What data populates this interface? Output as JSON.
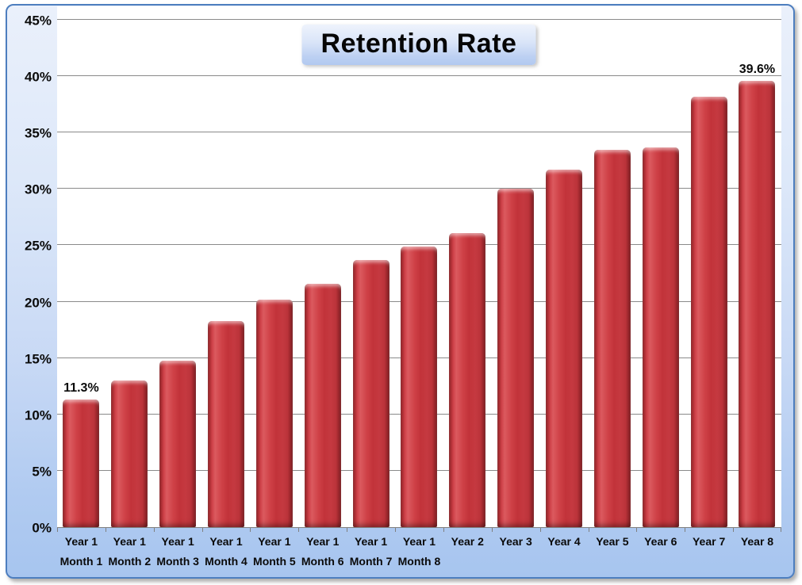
{
  "chart_data": {
    "type": "bar",
    "title": "Retention Rate",
    "categories": [
      {
        "line1": "Year 1",
        "line2": "Month 1"
      },
      {
        "line1": "Year 1",
        "line2": "Month 2"
      },
      {
        "line1": "Year 1",
        "line2": "Month 3"
      },
      {
        "line1": "Year 1",
        "line2": "Month 4"
      },
      {
        "line1": "Year 1",
        "line2": "Month 5"
      },
      {
        "line1": "Year 1",
        "line2": "Month 6"
      },
      {
        "line1": "Year 1",
        "line2": "Month 7"
      },
      {
        "line1": "Year 1",
        "line2": "Month 8"
      },
      {
        "line1": "Year 2",
        "line2": ""
      },
      {
        "line1": "Year 3",
        "line2": ""
      },
      {
        "line1": "Year 4",
        "line2": ""
      },
      {
        "line1": "Year 5",
        "line2": ""
      },
      {
        "line1": "Year 6",
        "line2": ""
      },
      {
        "line1": "Year 7",
        "line2": ""
      },
      {
        "line1": "Year 8",
        "line2": ""
      }
    ],
    "values": [
      11.3,
      13.0,
      14.8,
      18.3,
      20.2,
      21.6,
      23.7,
      24.9,
      26.1,
      30.0,
      31.7,
      33.5,
      33.7,
      38.2,
      39.6
    ],
    "data_labels": [
      {
        "index": 0,
        "label": "11.3%"
      },
      {
        "index": 14,
        "label": "39.6%"
      }
    ],
    "yticks": [
      {
        "v": 0,
        "label": "0%"
      },
      {
        "v": 5,
        "label": "5%"
      },
      {
        "v": 10,
        "label": "10%"
      },
      {
        "v": 15,
        "label": "15%"
      },
      {
        "v": 20,
        "label": "20%"
      },
      {
        "v": 25,
        "label": "25%"
      },
      {
        "v": 30,
        "label": "30%"
      },
      {
        "v": 35,
        "label": "35%"
      },
      {
        "v": 40,
        "label": "40%"
      },
      {
        "v": 45,
        "label": "45%"
      }
    ],
    "ylim": [
      0,
      45
    ],
    "grid": true,
    "legend": "none",
    "colors": {
      "bar": "#c2333a",
      "bar_edge_dark": "#7c1c20",
      "bar_highlight": "#db5a5f",
      "gridline": "#8a8a8a",
      "frame_border": "#4d7ebf",
      "frame_bg_top": "#eaf0fb",
      "frame_bg_bottom": "#a7c5ef",
      "plot_bg": "#ffffff",
      "text": "#0a0a0a"
    }
  }
}
